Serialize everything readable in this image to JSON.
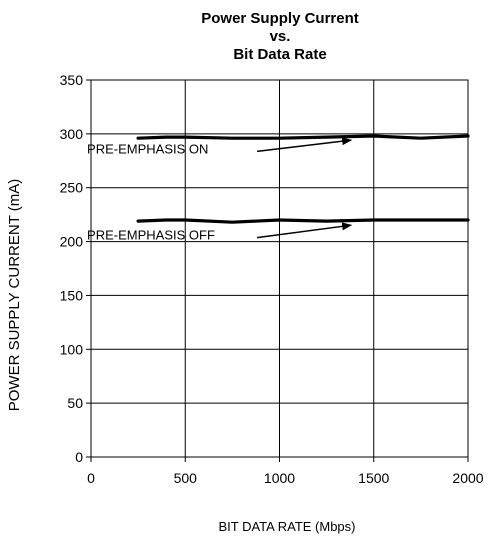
{
  "chart_data": {
    "type": "line",
    "title_lines": [
      "Power Supply Current",
      "vs.",
      "Bit Data Rate"
    ],
    "xlabel": "BIT DATA RATE (Mbps)",
    "ylabel": "POWER SUPPLY CURRENT (mA)",
    "xlim": [
      0,
      2000
    ],
    "ylim": [
      0,
      350
    ],
    "x_ticks": [
      "0",
      "500",
      "1000",
      "1500",
      "2000"
    ],
    "y_ticks": [
      "0",
      "50",
      "100",
      "150",
      "200",
      "250",
      "300",
      "350"
    ],
    "grid": true,
    "series": [
      {
        "x": [
          250,
          400,
          500,
          750,
          1000,
          1250,
          1500,
          1750,
          2000
        ],
        "y": [
          296,
          297,
          297,
          296,
          296,
          297,
          298,
          296,
          298
        ]
      },
      {
        "x": [
          250,
          400,
          500,
          750,
          1000,
          1250,
          1500,
          1750,
          2000
        ],
        "y": [
          219,
          220,
          220,
          218,
          220,
          219,
          220,
          220,
          220
        ]
      }
    ],
    "annotations": [
      {
        "text": "PRE-EMPHASIS ON",
        "x": 430,
        "y": 280,
        "arrow_to": [
          1380,
          297
        ]
      },
      {
        "text": "PRE-EMPHASIS OFF",
        "x": 430,
        "y": 200,
        "arrow_to": [
          1380,
          218
        ]
      }
    ]
  }
}
